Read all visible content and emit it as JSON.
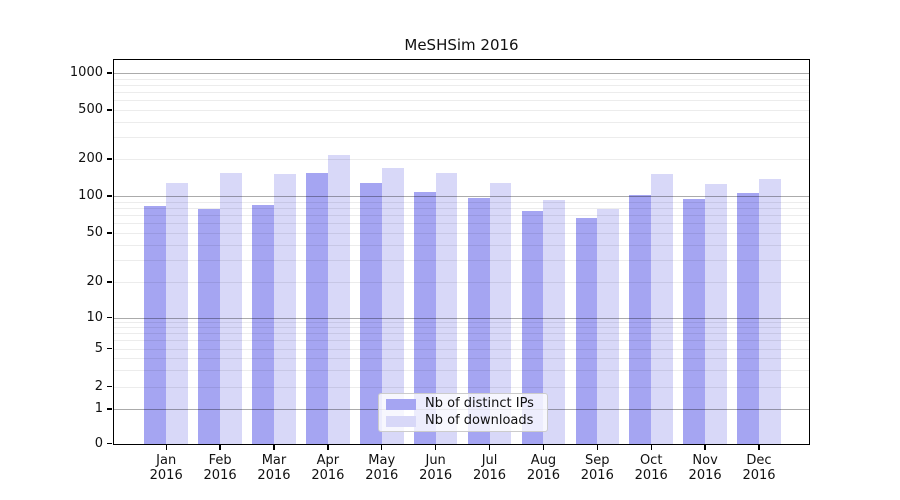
{
  "chart_data": {
    "type": "bar",
    "title": "MeSHSim 2016",
    "x_months": [
      "Jan",
      "Feb",
      "Mar",
      "Apr",
      "May",
      "Jun",
      "Jul",
      "Aug",
      "Sep",
      "Oct",
      "Nov",
      "Dec"
    ],
    "x_year": "2016",
    "categories": [
      "Jan 2016",
      "Feb 2016",
      "Mar 2016",
      "Apr 2016",
      "May 2016",
      "Jun 2016",
      "Jul 2016",
      "Aug 2016",
      "Sep 2016",
      "Oct 2016",
      "Nov 2016",
      "Dec 2016"
    ],
    "series": [
      {
        "name": "Nb of distinct IPs",
        "color": "#a5a5f2",
        "values": [
          83,
          78,
          84,
          153,
          127,
          107,
          96,
          75,
          66,
          102,
          94,
          106
        ]
      },
      {
        "name": "Nb of downloads",
        "color": "#d8d8f8",
        "values": [
          128,
          153,
          152,
          217,
          168,
          154,
          127,
          93,
          78,
          150,
          125,
          137
        ]
      }
    ],
    "yscale": "log-like (linear 0-1, compressed log 1-10, log above)",
    "yticks": [
      0,
      1,
      2,
      5,
      10,
      20,
      50,
      100,
      200,
      500,
      1000
    ],
    "ylim": [
      0,
      1300
    ],
    "xlabel": "",
    "ylabel": "",
    "grid": "horizontal major+minor gridlines drawn over bars",
    "legend_position": "bottom-center"
  },
  "colors": {
    "background": "#ffffff",
    "axis": "#000000",
    "text": "#111111",
    "gridline_major": "rgba(0,0,0,0.33)",
    "gridline_minor": "rgba(0,0,0,0.075)",
    "bar_distinct_ips": "#a5a5f2",
    "bar_downloads": "#d8d8f8"
  }
}
